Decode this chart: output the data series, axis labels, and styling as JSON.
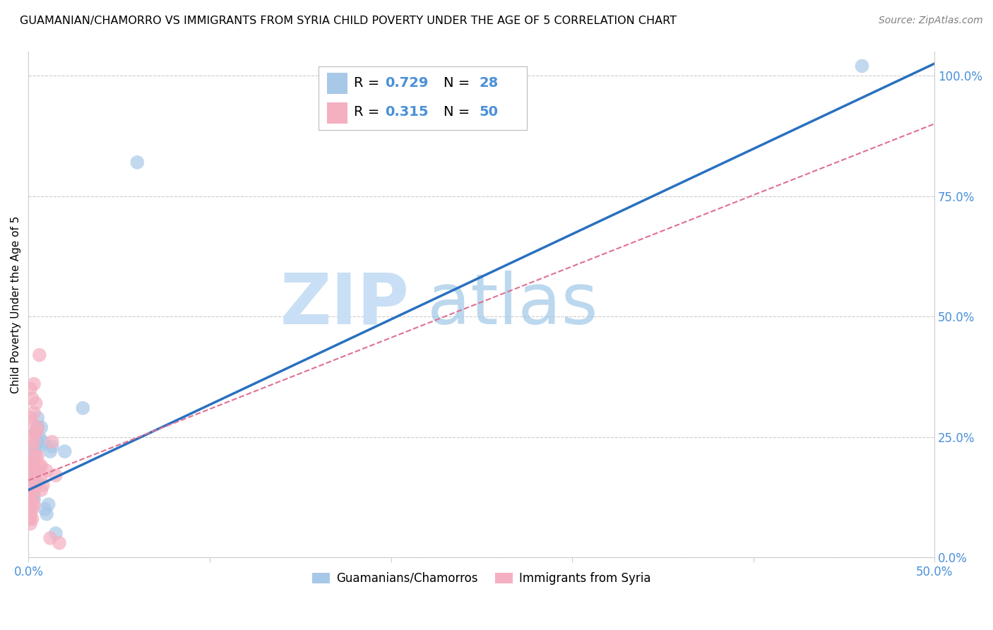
{
  "title": "GUAMANIAN/CHAMORRO VS IMMIGRANTS FROM SYRIA CHILD POVERTY UNDER THE AGE OF 5 CORRELATION CHART",
  "source": "Source: ZipAtlas.com",
  "tick_color": "#4a90d9",
  "ylabel": "Child Poverty Under the Age of 5",
  "xlim": [
    0.0,
    0.5
  ],
  "ylim": [
    0.0,
    1.05
  ],
  "xticks": [
    0.0,
    0.1,
    0.2,
    0.3,
    0.4,
    0.5
  ],
  "xticklabels_show": [
    "0.0%",
    "",
    "",
    "",
    "",
    "50.0%"
  ],
  "yticks": [
    0.0,
    0.25,
    0.5,
    0.75,
    1.0
  ],
  "yticklabels_right": [
    "0.0%",
    "25.0%",
    "50.0%",
    "75.0%",
    "100.0%"
  ],
  "watermark_zip": "ZIP",
  "watermark_atlas": "atlas",
  "legend_r1": "R = 0.729",
  "legend_n1": "N = 28",
  "legend_r2": "R = 0.315",
  "legend_n2": "N = 50",
  "blue_color": "#a8c8e8",
  "pink_color": "#f4afc0",
  "line_blue": "#2970c0",
  "line_pink": "#e07090",
  "blue_scatter": [
    [
      0.002,
      0.2
    ],
    [
      0.002,
      0.17
    ],
    [
      0.003,
      0.22
    ],
    [
      0.003,
      0.15
    ],
    [
      0.003,
      0.13
    ],
    [
      0.003,
      0.12
    ],
    [
      0.003,
      0.18
    ],
    [
      0.004,
      0.16
    ],
    [
      0.004,
      0.15
    ],
    [
      0.004,
      0.23
    ],
    [
      0.004,
      0.26
    ],
    [
      0.005,
      0.24
    ],
    [
      0.005,
      0.27
    ],
    [
      0.005,
      0.29
    ],
    [
      0.006,
      0.23
    ],
    [
      0.006,
      0.25
    ],
    [
      0.007,
      0.27
    ],
    [
      0.008,
      0.24
    ],
    [
      0.009,
      0.1
    ],
    [
      0.01,
      0.09
    ],
    [
      0.011,
      0.11
    ],
    [
      0.012,
      0.22
    ],
    [
      0.013,
      0.23
    ],
    [
      0.015,
      0.05
    ],
    [
      0.02,
      0.22
    ],
    [
      0.03,
      0.31
    ],
    [
      0.06,
      0.82
    ],
    [
      0.46,
      1.02
    ]
  ],
  "pink_scatter": [
    [
      0.001,
      0.35
    ],
    [
      0.001,
      0.12
    ],
    [
      0.001,
      0.29
    ],
    [
      0.001,
      0.21
    ],
    [
      0.001,
      0.25
    ],
    [
      0.001,
      0.19
    ],
    [
      0.001,
      0.17
    ],
    [
      0.001,
      0.15
    ],
    [
      0.001,
      0.14
    ],
    [
      0.001,
      0.13
    ],
    [
      0.001,
      0.12
    ],
    [
      0.001,
      0.11
    ],
    [
      0.001,
      0.1
    ],
    [
      0.001,
      0.09
    ],
    [
      0.001,
      0.08
    ],
    [
      0.001,
      0.07
    ],
    [
      0.002,
      0.33
    ],
    [
      0.002,
      0.28
    ],
    [
      0.002,
      0.23
    ],
    [
      0.002,
      0.19
    ],
    [
      0.002,
      0.16
    ],
    [
      0.002,
      0.14
    ],
    [
      0.002,
      0.12
    ],
    [
      0.002,
      0.1
    ],
    [
      0.002,
      0.08
    ],
    [
      0.003,
      0.36
    ],
    [
      0.003,
      0.3
    ],
    [
      0.003,
      0.24
    ],
    [
      0.003,
      0.2
    ],
    [
      0.003,
      0.17
    ],
    [
      0.003,
      0.14
    ],
    [
      0.003,
      0.11
    ],
    [
      0.004,
      0.32
    ],
    [
      0.004,
      0.26
    ],
    [
      0.004,
      0.21
    ],
    [
      0.004,
      0.18
    ],
    [
      0.004,
      0.26
    ],
    [
      0.005,
      0.27
    ],
    [
      0.005,
      0.21
    ],
    [
      0.006,
      0.19
    ],
    [
      0.006,
      0.42
    ],
    [
      0.007,
      0.17
    ],
    [
      0.007,
      0.14
    ],
    [
      0.007,
      0.19
    ],
    [
      0.008,
      0.15
    ],
    [
      0.01,
      0.18
    ],
    [
      0.012,
      0.04
    ],
    [
      0.013,
      0.24
    ],
    [
      0.015,
      0.17
    ],
    [
      0.017,
      0.03
    ]
  ],
  "blue_line_x": [
    0.0,
    0.5
  ],
  "blue_line_y": [
    0.14,
    1.025
  ],
  "pink_line_x": [
    0.0,
    0.5
  ],
  "pink_line_y": [
    0.16,
    0.9
  ],
  "background_color": "#ffffff",
  "grid_color": "#cccccc",
  "title_fontsize": 11.5,
  "axis_label_fontsize": 11,
  "tick_fontsize": 12,
  "legend_fontsize": 14,
  "source_fontsize": 10
}
